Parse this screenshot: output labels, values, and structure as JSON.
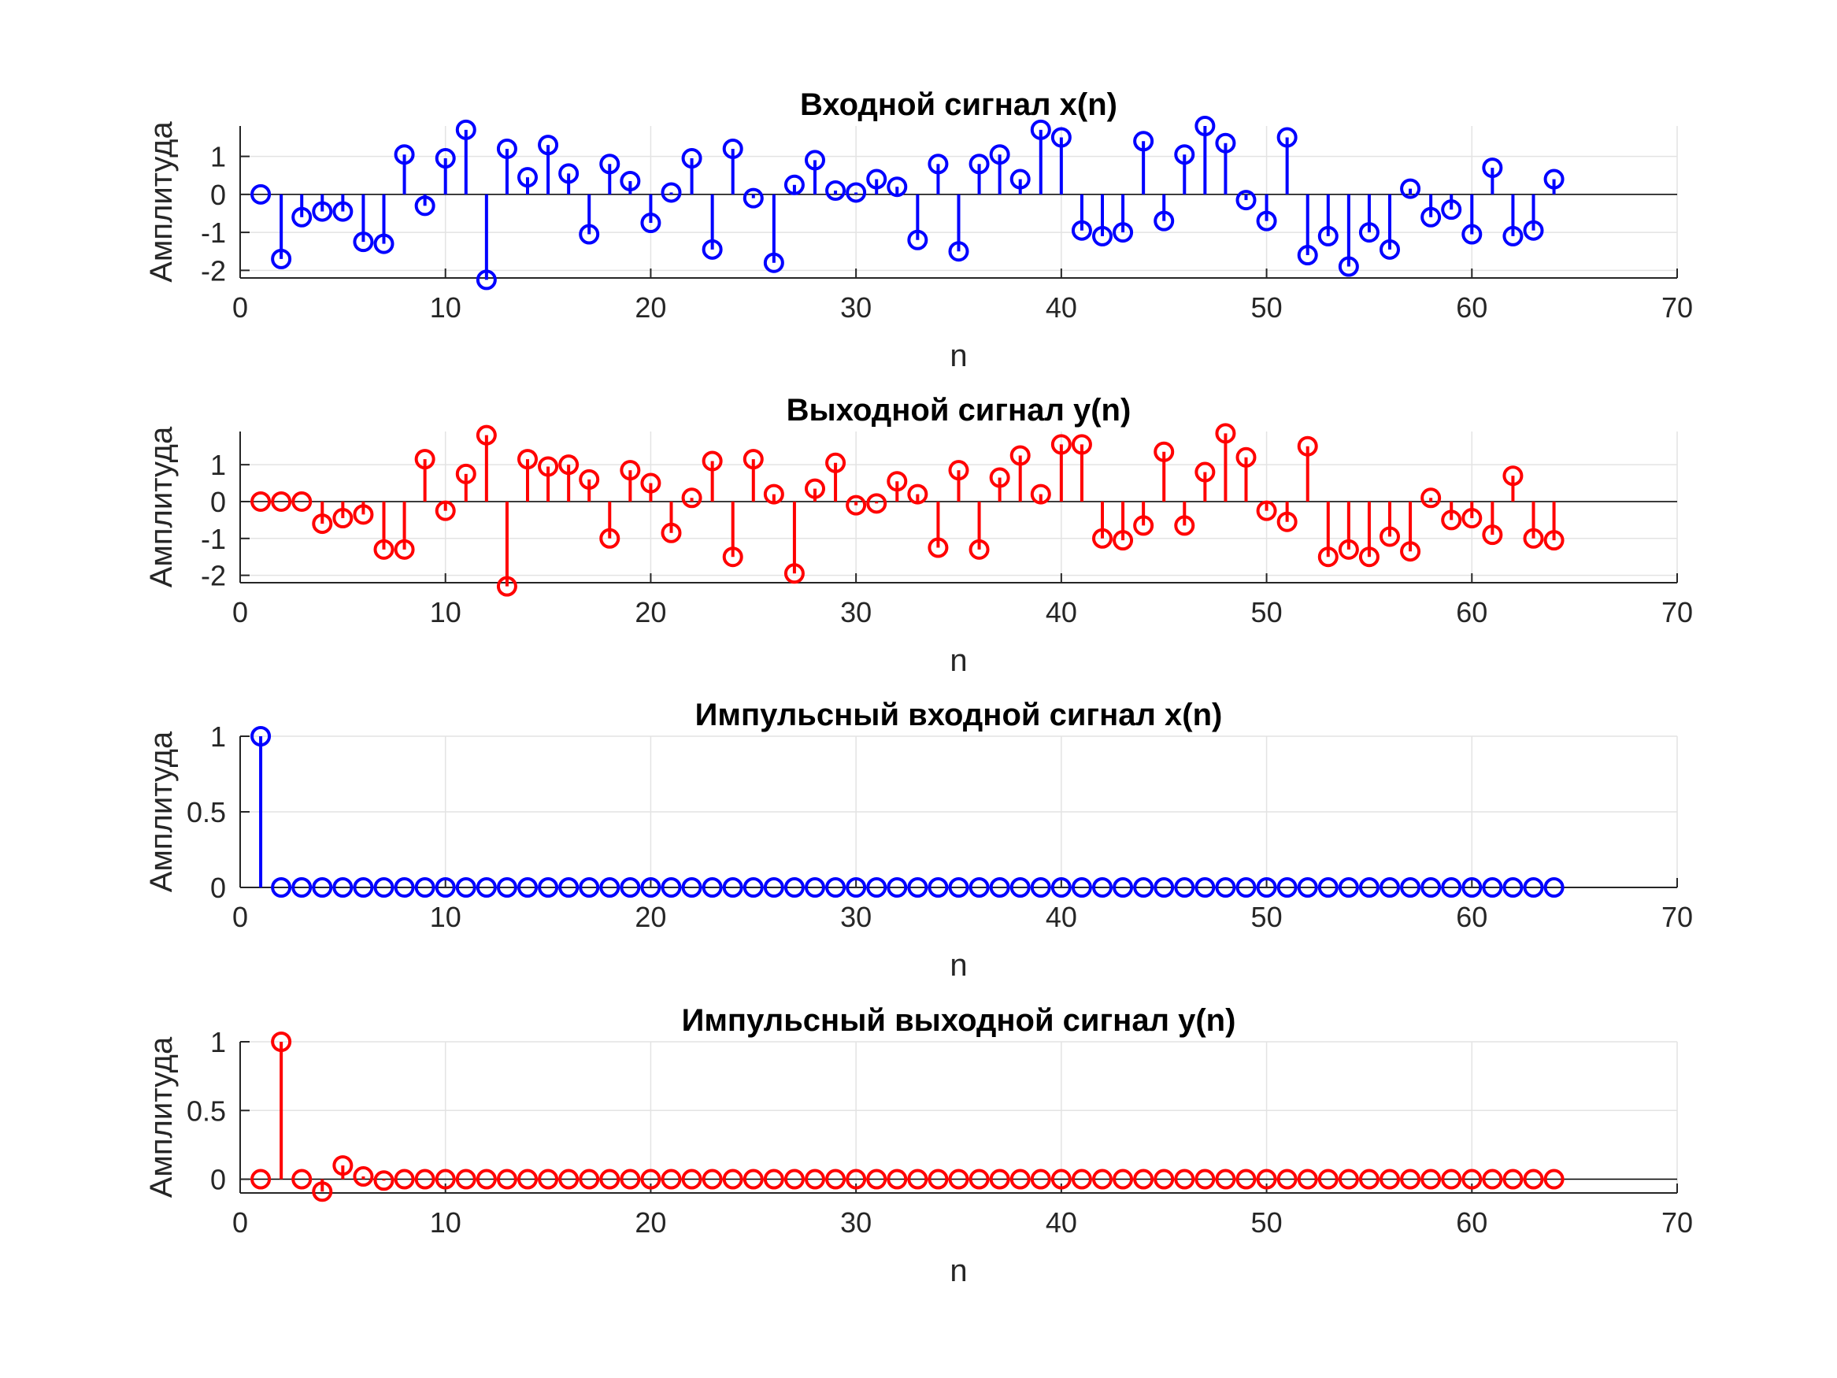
{
  "chart_data": [
    {
      "type": "stem",
      "title": "Входной сигнал x(n)",
      "xlabel": "n",
      "ylabel": "Амплитуда",
      "xlim": [
        0,
        70
      ],
      "ylim": [
        -2.2,
        1.8
      ],
      "xticks": [
        "0",
        "10",
        "20",
        "30",
        "40",
        "50",
        "60",
        "70"
      ],
      "yticks": [
        "-2",
        "-1",
        "0",
        "1"
      ],
      "grid": true,
      "color": "#0000FF",
      "x": [
        1,
        2,
        3,
        4,
        5,
        6,
        7,
        8,
        9,
        10,
        11,
        12,
        13,
        14,
        15,
        16,
        17,
        18,
        19,
        20,
        21,
        22,
        23,
        24,
        25,
        26,
        27,
        28,
        29,
        30,
        31,
        32,
        33,
        34,
        35,
        36,
        37,
        38,
        39,
        40,
        41,
        42,
        43,
        44,
        45,
        46,
        47,
        48,
        49,
        50,
        51,
        52,
        53,
        54,
        55,
        56,
        57,
        58,
        59,
        60,
        61,
        62,
        63,
        64
      ],
      "values": [
        0.0,
        -1.7,
        -0.6,
        -0.45,
        -0.45,
        -1.25,
        -1.3,
        1.05,
        -0.3,
        0.95,
        1.7,
        -2.25,
        1.2,
        0.45,
        1.3,
        0.55,
        -1.05,
        0.8,
        0.35,
        -0.75,
        0.05,
        0.95,
        -1.45,
        1.2,
        -0.1,
        -1.8,
        0.25,
        0.9,
        0.1,
        0.05,
        0.4,
        0.2,
        -1.2,
        0.8,
        -1.5,
        0.8,
        1.05,
        0.4,
        1.7,
        1.5,
        -0.95,
        -1.1,
        -1.0,
        1.4,
        -0.7,
        1.05,
        1.8,
        1.35,
        -0.15,
        -0.7,
        1.5,
        -1.6,
        -1.1,
        -1.9,
        -1.0,
        -1.45,
        0.15,
        -0.6,
        -0.4,
        -1.05,
        0.7,
        -1.1,
        -0.95,
        0.4
      ]
    },
    {
      "type": "stem",
      "title": "Выходной сигнал y(n)",
      "xlabel": "n",
      "ylabel": "Амплитуда",
      "xlim": [
        0,
        70
      ],
      "ylim": [
        -2.2,
        1.9
      ],
      "xticks": [
        "0",
        "10",
        "20",
        "30",
        "40",
        "50",
        "60",
        "70"
      ],
      "yticks": [
        "-2",
        "-1",
        "0",
        "1"
      ],
      "grid": true,
      "color": "#FF0000",
      "x": [
        1,
        2,
        3,
        4,
        5,
        6,
        7,
        8,
        9,
        10,
        11,
        12,
        13,
        14,
        15,
        16,
        17,
        18,
        19,
        20,
        21,
        22,
        23,
        24,
        25,
        26,
        27,
        28,
        29,
        30,
        31,
        32,
        33,
        34,
        35,
        36,
        37,
        38,
        39,
        40,
        41,
        42,
        43,
        44,
        45,
        46,
        47,
        48,
        49,
        50,
        51,
        52,
        53,
        54,
        55,
        56,
        57,
        58,
        59,
        60,
        61,
        62,
        63,
        64
      ],
      "values": [
        0.0,
        0.0,
        0.0,
        -0.6,
        -0.45,
        -0.35,
        -1.3,
        -1.3,
        1.15,
        -0.25,
        0.75,
        1.8,
        -2.3,
        1.15,
        0.95,
        1.0,
        0.6,
        -1.0,
        0.85,
        0.5,
        -0.85,
        0.1,
        1.1,
        -1.5,
        1.15,
        0.2,
        -1.95,
        0.35,
        1.05,
        -0.1,
        -0.05,
        0.55,
        0.2,
        -1.25,
        0.85,
        -1.3,
        0.65,
        1.25,
        0.2,
        1.55,
        1.55,
        -1.0,
        -1.05,
        -0.65,
        1.35,
        -0.65,
        0.8,
        1.85,
        1.2,
        -0.25,
        -0.55,
        1.5,
        -1.5,
        -1.3,
        -1.5,
        -0.95,
        -1.35,
        0.1,
        -0.5,
        -0.45,
        -0.9,
        0.7,
        -1.0,
        -1.05
      ]
    },
    {
      "type": "stem",
      "title": "Импульсный входной сигнал x(n)",
      "xlabel": "n",
      "ylabel": "Амплитуда",
      "xlim": [
        0,
        70
      ],
      "ylim": [
        0,
        1
      ],
      "xticks": [
        "0",
        "10",
        "20",
        "30",
        "40",
        "50",
        "60",
        "70"
      ],
      "yticks": [
        "0",
        "0.5",
        "1"
      ],
      "grid": true,
      "color": "#0000FF",
      "x": [
        1,
        2,
        3,
        4,
        5,
        6,
        7,
        8,
        9,
        10,
        11,
        12,
        13,
        14,
        15,
        16,
        17,
        18,
        19,
        20,
        21,
        22,
        23,
        24,
        25,
        26,
        27,
        28,
        29,
        30,
        31,
        32,
        33,
        34,
        35,
        36,
        37,
        38,
        39,
        40,
        41,
        42,
        43,
        44,
        45,
        46,
        47,
        48,
        49,
        50,
        51,
        52,
        53,
        54,
        55,
        56,
        57,
        58,
        59,
        60,
        61,
        62,
        63,
        64
      ],
      "values": [
        1,
        0,
        0,
        0,
        0,
        0,
        0,
        0,
        0,
        0,
        0,
        0,
        0,
        0,
        0,
        0,
        0,
        0,
        0,
        0,
        0,
        0,
        0,
        0,
        0,
        0,
        0,
        0,
        0,
        0,
        0,
        0,
        0,
        0,
        0,
        0,
        0,
        0,
        0,
        0,
        0,
        0,
        0,
        0,
        0,
        0,
        0,
        0,
        0,
        0,
        0,
        0,
        0,
        0,
        0,
        0,
        0,
        0,
        0,
        0,
        0,
        0,
        0,
        0
      ]
    },
    {
      "type": "stem",
      "title": "Импульсный выходной сигнал y(n)",
      "xlabel": "n",
      "ylabel": "Амплитуда",
      "xlim": [
        0,
        70
      ],
      "ylim": [
        -0.1,
        1
      ],
      "xticks": [
        "0",
        "10",
        "20",
        "30",
        "40",
        "50",
        "60",
        "70"
      ],
      "yticks": [
        "0",
        "0.5",
        "1"
      ],
      "grid": true,
      "color": "#FF0000",
      "x": [
        1,
        2,
        3,
        4,
        5,
        6,
        7,
        8,
        9,
        10,
        11,
        12,
        13,
        14,
        15,
        16,
        17,
        18,
        19,
        20,
        21,
        22,
        23,
        24,
        25,
        26,
        27,
        28,
        29,
        30,
        31,
        32,
        33,
        34,
        35,
        36,
        37,
        38,
        39,
        40,
        41,
        42,
        43,
        44,
        45,
        46,
        47,
        48,
        49,
        50,
        51,
        52,
        53,
        54,
        55,
        56,
        57,
        58,
        59,
        60,
        61,
        62,
        63,
        64
      ],
      "values": [
        0,
        1,
        0,
        -0.09,
        0.1,
        0.02,
        -0.01,
        0,
        0,
        0,
        0,
        0,
        0,
        0,
        0,
        0,
        0,
        0,
        0,
        0,
        0,
        0,
        0,
        0,
        0,
        0,
        0,
        0,
        0,
        0,
        0,
        0,
        0,
        0,
        0,
        0,
        0,
        0,
        0,
        0,
        0,
        0,
        0,
        0,
        0,
        0,
        0,
        0,
        0,
        0,
        0,
        0,
        0,
        0,
        0,
        0,
        0,
        0,
        0,
        0,
        0,
        0,
        0,
        0
      ]
    }
  ]
}
